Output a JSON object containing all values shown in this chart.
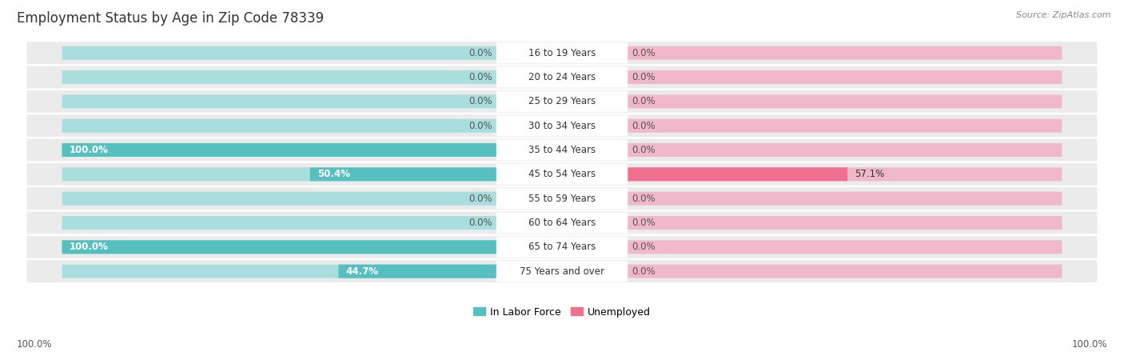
{
  "title": "Employment Status by Age in Zip Code 78339",
  "source": "Source: ZipAtlas.com",
  "categories": [
    "16 to 19 Years",
    "20 to 24 Years",
    "25 to 29 Years",
    "30 to 34 Years",
    "35 to 44 Years",
    "45 to 54 Years",
    "55 to 59 Years",
    "60 to 64 Years",
    "65 to 74 Years",
    "75 Years and over"
  ],
  "in_labor_force": [
    0.0,
    0.0,
    0.0,
    0.0,
    100.0,
    50.4,
    0.0,
    0.0,
    100.0,
    44.7
  ],
  "unemployed": [
    0.0,
    0.0,
    0.0,
    0.0,
    0.0,
    57.1,
    0.0,
    0.0,
    0.0,
    0.0
  ],
  "labor_color": "#56bfbf",
  "unemployed_color": "#f07090",
  "bar_bg_left": "#a8dede",
  "bar_bg_right": "#f0b8c8",
  "row_bg": "#ebebeb",
  "label_bg": "#ffffff",
  "axis_label_left": "100.0%",
  "axis_label_right": "100.0%",
  "legend_labor": "In Labor Force",
  "legend_unemployed": "Unemployed",
  "title_fontsize": 12,
  "source_fontsize": 8,
  "label_fontsize": 8.5,
  "cat_fontsize": 8.5,
  "max_val": 100.0
}
